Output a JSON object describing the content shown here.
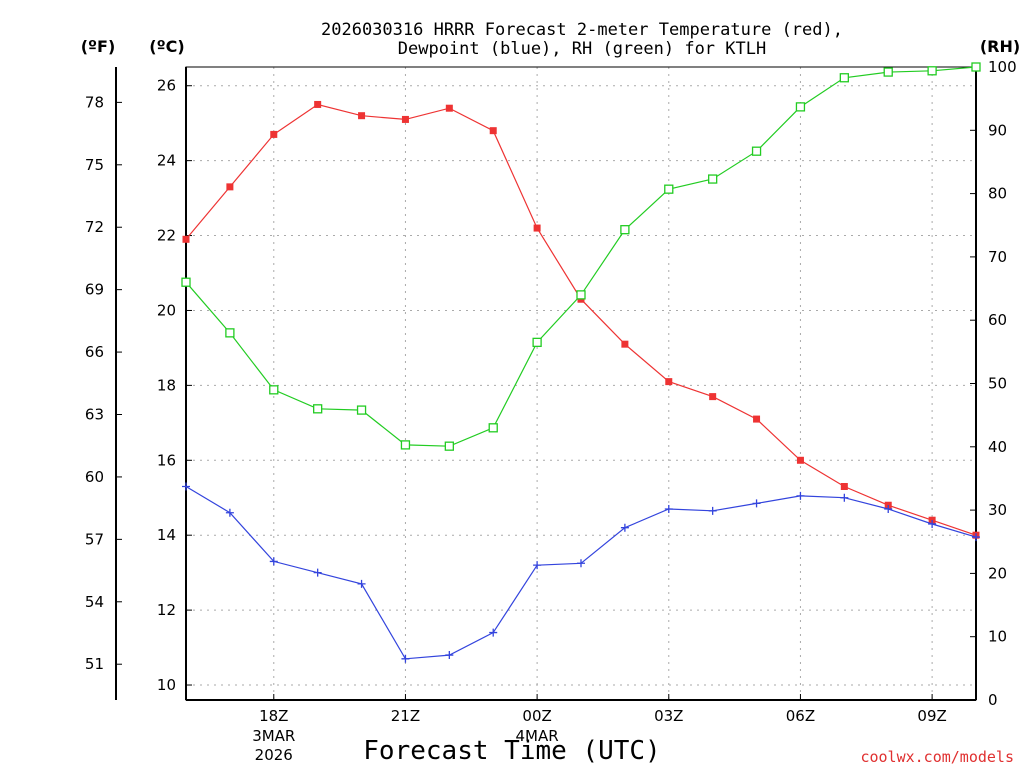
{
  "chart_data": {
    "type": "line",
    "title_line1": "2026030316 HRRR Forecast 2-meter Temperature (red),",
    "title_line2": "Dewpoint (blue), RH (green) for KTLH",
    "unit_f": "(ºF)",
    "unit_c": "(ºC)",
    "unit_rh": "(RH)",
    "xlabel": "Forecast Time (UTC)",
    "credit": "coolwx.com/models",
    "hour_range": [
      16,
      34
    ],
    "ylim_c": [
      9.6,
      26.5
    ],
    "ylim_rh": [
      0,
      100
    ],
    "c_ticks": [
      {
        "value": 10,
        "label": "10"
      },
      {
        "value": 12,
        "label": "12"
      },
      {
        "value": 14,
        "label": "14"
      },
      {
        "value": 16,
        "label": "16"
      },
      {
        "value": 18,
        "label": "18"
      },
      {
        "value": 20,
        "label": "20"
      },
      {
        "value": 22,
        "label": "22"
      },
      {
        "value": 24,
        "label": "24"
      },
      {
        "value": 26,
        "label": "26"
      }
    ],
    "f_ticks": [
      {
        "value": 51,
        "label": "51"
      },
      {
        "value": 54,
        "label": "54"
      },
      {
        "value": 57,
        "label": "57"
      },
      {
        "value": 60,
        "label": "60"
      },
      {
        "value": 63,
        "label": "63"
      },
      {
        "value": 66,
        "label": "66"
      },
      {
        "value": 69,
        "label": "69"
      },
      {
        "value": 72,
        "label": "72"
      },
      {
        "value": 75,
        "label": "75"
      },
      {
        "value": 78,
        "label": "78"
      }
    ],
    "rh_ticks": [
      {
        "value": 0,
        "label": "0"
      },
      {
        "value": 10,
        "label": "10"
      },
      {
        "value": 20,
        "label": "20"
      },
      {
        "value": 30,
        "label": "30"
      },
      {
        "value": 40,
        "label": "40"
      },
      {
        "value": 50,
        "label": "50"
      },
      {
        "value": 60,
        "label": "60"
      },
      {
        "value": 70,
        "label": "70"
      },
      {
        "value": 80,
        "label": "80"
      },
      {
        "value": 90,
        "label": "90"
      },
      {
        "value": 100,
        "label": "100"
      }
    ],
    "x_ticks": [
      {
        "hour": 18,
        "label": "18Z",
        "sub1": "3MAR",
        "sub2": "2026"
      },
      {
        "hour": 21,
        "label": "21Z",
        "sub1": "",
        "sub2": ""
      },
      {
        "hour": 24,
        "label": "00Z",
        "sub1": "4MAR",
        "sub2": ""
      },
      {
        "hour": 27,
        "label": "03Z",
        "sub1": "",
        "sub2": ""
      },
      {
        "hour": 30,
        "label": "06Z",
        "sub1": "",
        "sub2": ""
      },
      {
        "hour": 33,
        "label": "09Z",
        "sub1": "",
        "sub2": ""
      }
    ],
    "hours": [
      16,
      17,
      18,
      19,
      20,
      21,
      22,
      23,
      24,
      25,
      26,
      27,
      28,
      29,
      30,
      31,
      32,
      33,
      34
    ],
    "series": [
      {
        "name": "Temperature",
        "unit": "C",
        "color": "#ee3333",
        "marker": "filled-square",
        "values": [
          21.9,
          23.3,
          24.7,
          25.5,
          25.2,
          25.1,
          25.4,
          24.8,
          22.2,
          20.3,
          19.1,
          18.1,
          17.7,
          17.1,
          16.0,
          15.3,
          14.8,
          14.4,
          14.0
        ]
      },
      {
        "name": "Dewpoint",
        "unit": "C",
        "color": "#3344dd",
        "marker": "plus",
        "values": [
          15.3,
          14.6,
          13.3,
          13.0,
          12.7,
          10.7,
          10.8,
          11.4,
          13.2,
          13.25,
          14.2,
          14.7,
          14.65,
          14.85,
          15.05,
          15.0,
          14.7,
          14.3,
          13.95
        ]
      },
      {
        "name": "RH",
        "unit": "%",
        "color": "#22cc22",
        "marker": "open-square",
        "values": [
          66,
          58,
          49,
          46,
          45.8,
          40.3,
          40.1,
          43,
          56.5,
          64,
          74.3,
          80.7,
          82.3,
          86.7,
          93.7,
          98.3,
          99.2,
          99.4,
          100
        ]
      }
    ]
  }
}
